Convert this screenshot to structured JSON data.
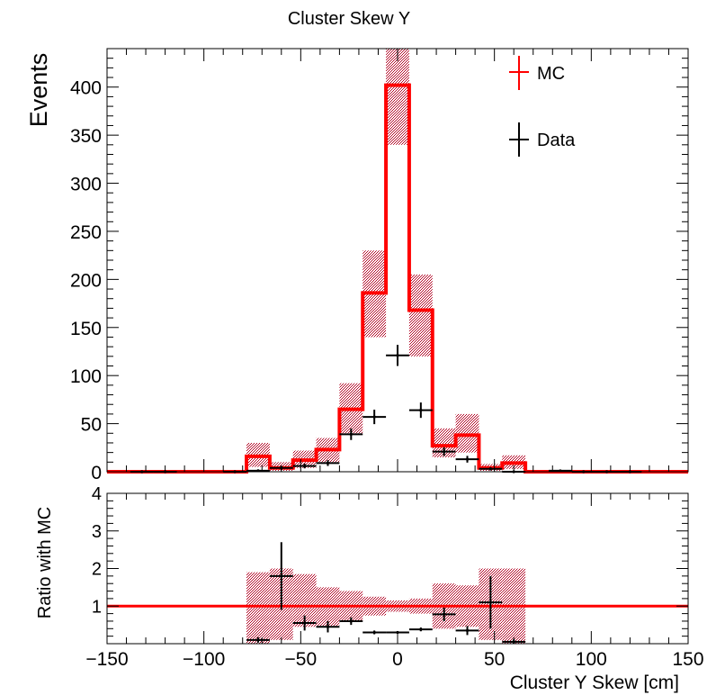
{
  "title": "Cluster Skew Y",
  "colors": {
    "mc": "#ff0000",
    "data": "#000000",
    "band": "#b00020"
  },
  "chart_data": [
    {
      "type": "histogram",
      "title": "Cluster Skew Y",
      "ylabel": "Events",
      "xlim": [
        -150,
        150
      ],
      "ylim": [
        0,
        440
      ],
      "yticks": [
        "0",
        "50",
        "100",
        "150",
        "200",
        "250",
        "300",
        "350",
        "400"
      ],
      "legend": {
        "placement": "top-right",
        "entries": [
          "MC",
          "Data"
        ]
      },
      "bin_edges": [
        -150,
        -138,
        -126,
        -114,
        -102,
        -90,
        -78,
        -66,
        -54,
        -42,
        -30,
        -18,
        -6,
        6,
        18,
        30,
        42,
        54,
        66,
        78,
        90,
        102,
        114,
        126,
        138,
        150
      ],
      "series": [
        {
          "name": "MC",
          "style": "step",
          "values": [
            0,
            0,
            0,
            0,
            0,
            0,
            16,
            4,
            12,
            23,
            65,
            186,
            402,
            168,
            27,
            38,
            4,
            9,
            0,
            0,
            0,
            0,
            0,
            0,
            0
          ],
          "band_low": [
            0,
            0,
            0,
            0,
            0,
            0,
            5,
            1,
            4,
            10,
            40,
            140,
            340,
            120,
            15,
            20,
            1,
            3,
            0,
            0,
            0,
            0,
            0,
            0,
            0
          ],
          "band_high": [
            0,
            0,
            0,
            0,
            0,
            0,
            30,
            10,
            22,
            35,
            92,
            230,
            440,
            205,
            45,
            60,
            8,
            17,
            0,
            0,
            0,
            0,
            0,
            0,
            0
          ]
        },
        {
          "name": "Data",
          "style": "errorbar",
          "x": [
            -132,
            -120,
            -84,
            -72,
            -60,
            -48,
            -36,
            -24,
            -12,
            0,
            12,
            24,
            36,
            48,
            60,
            84,
            96,
            108,
            120
          ],
          "y": [
            0,
            0,
            0,
            1,
            4,
            6,
            9,
            39,
            57,
            121,
            64,
            21,
            13,
            3,
            0,
            1,
            0,
            0,
            0
          ],
          "yerr": [
            1,
            1,
            1,
            1.5,
            2,
            2.5,
            3,
            6,
            7.5,
            11,
            8,
            4.5,
            3.5,
            1.7,
            1,
            1,
            1,
            1,
            1
          ],
          "xerr": 6
        }
      ]
    },
    {
      "type": "ratio",
      "ylabel": "Ratio with MC",
      "xlabel": "Cluster Y Skew [cm]",
      "xlim": [
        -150,
        150
      ],
      "ylim": [
        0,
        4
      ],
      "yticks": [
        "1",
        "2",
        "3",
        "4"
      ],
      "xticks": [
        "−150",
        "−100",
        "−50",
        "0",
        "50",
        "100",
        "150"
      ],
      "reference_line": 1,
      "band": {
        "bin_edges": [
          -78,
          -66,
          -54,
          -42,
          -30,
          -18,
          -6,
          6,
          18,
          30,
          42,
          54,
          66
        ],
        "low": [
          0,
          0.1,
          0.45,
          0.45,
          0.6,
          0.75,
          0.85,
          0.8,
          0.4,
          0.45,
          0.1,
          0
        ],
        "high": [
          1.9,
          2.0,
          1.85,
          1.5,
          1.4,
          1.25,
          1.15,
          1.2,
          1.6,
          1.55,
          2.0,
          2.0
        ]
      },
      "points": {
        "x": [
          -72,
          -60,
          -48,
          -36,
          -24,
          -12,
          0,
          12,
          24,
          36,
          48,
          60
        ],
        "y": [
          0.1,
          1.8,
          0.55,
          0.45,
          0.6,
          0.3,
          0.3,
          0.38,
          0.78,
          0.35,
          1.1,
          0.05
        ],
        "yerr": [
          0.07,
          0.9,
          0.2,
          0.15,
          0.1,
          0.05,
          0.03,
          0.05,
          0.18,
          0.12,
          0.7,
          0.07
        ],
        "xerr": 6
      }
    }
  ]
}
